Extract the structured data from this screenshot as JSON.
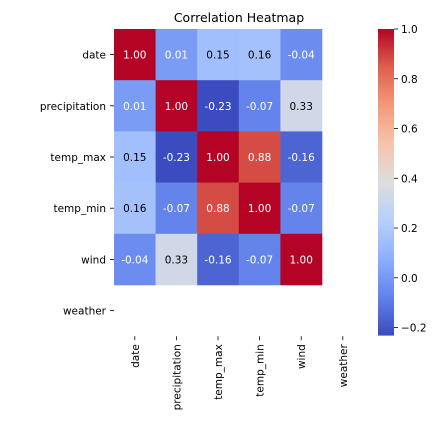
{
  "chart_data": {
    "type": "heatmap",
    "title": "Correlation Heatmap",
    "rows": [
      "date",
      "precipitation",
      "temp_max",
      "temp_min",
      "wind",
      "weather"
    ],
    "columns": [
      "date",
      "precipitation",
      "temp_max",
      "temp_min",
      "wind",
      "weather"
    ],
    "values": [
      [
        1.0,
        0.01,
        0.15,
        0.16,
        -0.04,
        null
      ],
      [
        0.01,
        1.0,
        -0.23,
        -0.07,
        0.33,
        null
      ],
      [
        0.15,
        -0.23,
        1.0,
        0.88,
        -0.16,
        null
      ],
      [
        0.16,
        -0.07,
        0.88,
        1.0,
        -0.07,
        null
      ],
      [
        -0.04,
        0.33,
        -0.16,
        -0.07,
        1.0,
        null
      ],
      [
        null,
        null,
        null,
        null,
        null,
        null
      ]
    ],
    "annotations": [
      [
        "1.00",
        "0.01",
        "0.15",
        "0.16",
        "-0.04",
        ""
      ],
      [
        "0.01",
        "1.00",
        "-0.23",
        "-0.07",
        "0.33",
        ""
      ],
      [
        "0.15",
        "-0.23",
        "1.00",
        "0.88",
        "-0.16",
        ""
      ],
      [
        "0.16",
        "-0.07",
        "0.88",
        "1.00",
        "-0.07",
        ""
      ],
      [
        "-0.04",
        "0.33",
        "-0.16",
        "-0.07",
        "1.00",
        ""
      ],
      [
        "",
        "",
        "",
        "",
        "",
        ""
      ]
    ],
    "colormap": "coolwarm",
    "vmin": -0.23,
    "vmax": 1.0,
    "colorbar_ticks": [
      "1.0",
      "0.8",
      "0.6",
      "0.4",
      "0.2",
      "0.0",
      "−0.2"
    ],
    "colorbar_tick_values": [
      1.0,
      0.8,
      0.6,
      0.4,
      0.2,
      0.0,
      -0.2
    ]
  }
}
